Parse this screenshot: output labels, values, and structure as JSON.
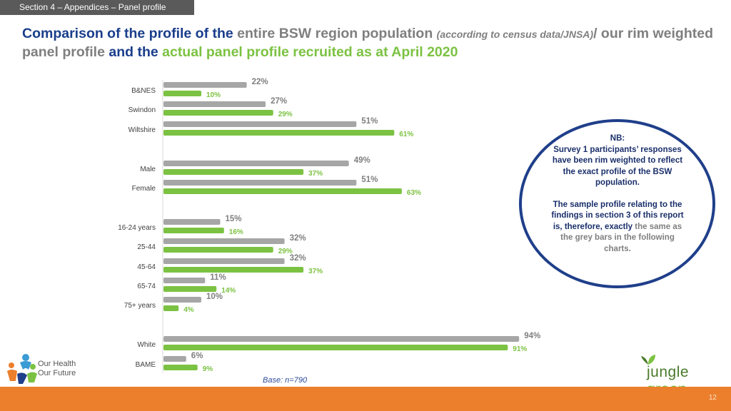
{
  "header": {
    "section_tab": "Section 4 – Appendices – Panel profile"
  },
  "title": {
    "part1": "Comparison of the profile of the",
    "part2": "entire BSW region population",
    "part3": "(according to census data/JNSA)",
    "part4": "/",
    "part5": "our rim weighted panel profile",
    "part6": "and the",
    "part7": "actual panel profile recruited as at April 2020"
  },
  "chart_data": {
    "type": "bar",
    "orientation": "horizontal",
    "categories": [
      "B&NES",
      "Swindon",
      "Wiltshire",
      "Male",
      "Female",
      "16-24 years",
      "25-44",
      "45-64",
      "65-74",
      "75+ years",
      "White",
      "BAME"
    ],
    "series": [
      {
        "values": [
          22,
          27,
          51,
          49,
          51,
          15,
          32,
          32,
          11,
          10,
          94,
          6
        ],
        "color": "#a6a6a6",
        "label_color": "#7f7f7f"
      },
      {
        "values": [
          10,
          29,
          61,
          37,
          63,
          16,
          29,
          37,
          14,
          4,
          91,
          9
        ],
        "color": "#7cc242",
        "label_color": "#7cc242"
      }
    ],
    "value_suffix": "%",
    "xlim": [
      0,
      100
    ]
  },
  "note": {
    "heading": "NB:",
    "line1": "Survey 1 participants’ responses have been rim weighted to reflect the exact profile of the BSW population.",
    "line2a": "The sample profile relating to the findings in section 3 of this report is, therefore, exactly",
    "line2b": "the same as the grey bars in the following charts."
  },
  "base": "Base: n=790",
  "logos": {
    "left_line1": "Our Health",
    "left_line2": "Our Future",
    "right_a": "jungle",
    "right_b": "green"
  },
  "page_number": "12",
  "colors": {
    "accent_navy": "#1a3e8c",
    "grey_bar": "#a6a6a6",
    "green_bar": "#7cc242",
    "footer": "#ec7f2c"
  }
}
